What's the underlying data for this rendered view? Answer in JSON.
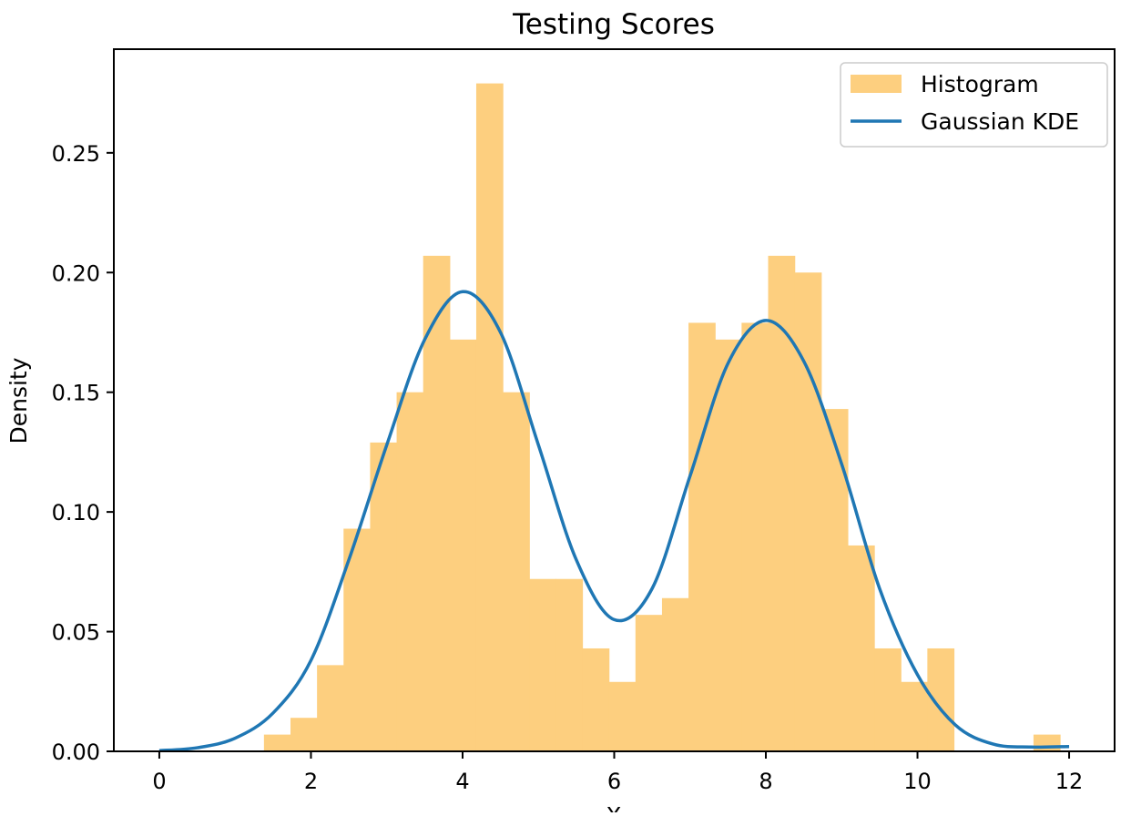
{
  "chart_data": {
    "type": "bar",
    "title": "Testing Scores",
    "xlabel": "X",
    "ylabel": "Density",
    "xlim": [
      -0.6,
      12.6
    ],
    "ylim": [
      0,
      0.2933
    ],
    "xticks": [
      0,
      2,
      4,
      6,
      8,
      10,
      12
    ],
    "xtick_labels": [
      "0",
      "2",
      "4",
      "6",
      "8",
      "10",
      "12"
    ],
    "yticks": [
      0,
      0.05,
      0.1,
      0.15,
      0.2,
      0.25
    ],
    "ytick_labels": [
      "0.00",
      "0.05",
      "0.10",
      "0.15",
      "0.20",
      "0.25"
    ],
    "grid": false,
    "legend": {
      "position": "top-right",
      "entries": [
        {
          "label": "Histogram",
          "kind": "patch",
          "color": "#fdcf7f"
        },
        {
          "label": "Gaussian KDE",
          "kind": "line",
          "color": "#1f77b4"
        }
      ]
    },
    "histogram": {
      "name": "Histogram",
      "color": "#fdcf7f",
      "bin_edges": [
        1.38,
        1.73,
        2.08,
        2.43,
        2.78,
        3.13,
        3.48,
        3.83,
        4.18,
        4.53,
        4.88,
        5.23,
        5.58,
        5.93,
        6.28,
        6.63,
        6.98,
        7.33,
        7.68,
        8.03,
        8.38,
        8.73,
        9.08,
        9.43,
        9.78,
        10.13,
        10.48,
        10.83,
        11.18,
        11.53,
        11.88
      ],
      "densities": [
        0.007,
        0.014,
        0.036,
        0.093,
        0.129,
        0.15,
        0.207,
        0.172,
        0.279,
        0.15,
        0.072,
        0.072,
        0.043,
        0.029,
        0.057,
        0.064,
        0.179,
        0.172,
        0.179,
        0.207,
        0.2,
        0.143,
        0.086,
        0.043,
        0.029,
        0.043,
        0.0,
        0.0,
        0.0,
        0.007
      ]
    },
    "kde": {
      "name": "Gaussian KDE",
      "color": "#1f77b4",
      "x": [
        0,
        0.5,
        1.0,
        1.5,
        2.0,
        2.5,
        3.0,
        3.5,
        4.0,
        4.5,
        5.0,
        5.5,
        6.0,
        6.5,
        7.0,
        7.5,
        8.0,
        8.5,
        9.0,
        9.5,
        10.0,
        10.5,
        11.0,
        11.5,
        12.0
      ],
      "y": [
        0.0003,
        0.0015,
        0.0055,
        0.016,
        0.038,
        0.08,
        0.128,
        0.172,
        0.192,
        0.175,
        0.128,
        0.08,
        0.055,
        0.068,
        0.115,
        0.162,
        0.18,
        0.163,
        0.12,
        0.068,
        0.032,
        0.011,
        0.003,
        0.0018,
        0.002
      ]
    }
  }
}
